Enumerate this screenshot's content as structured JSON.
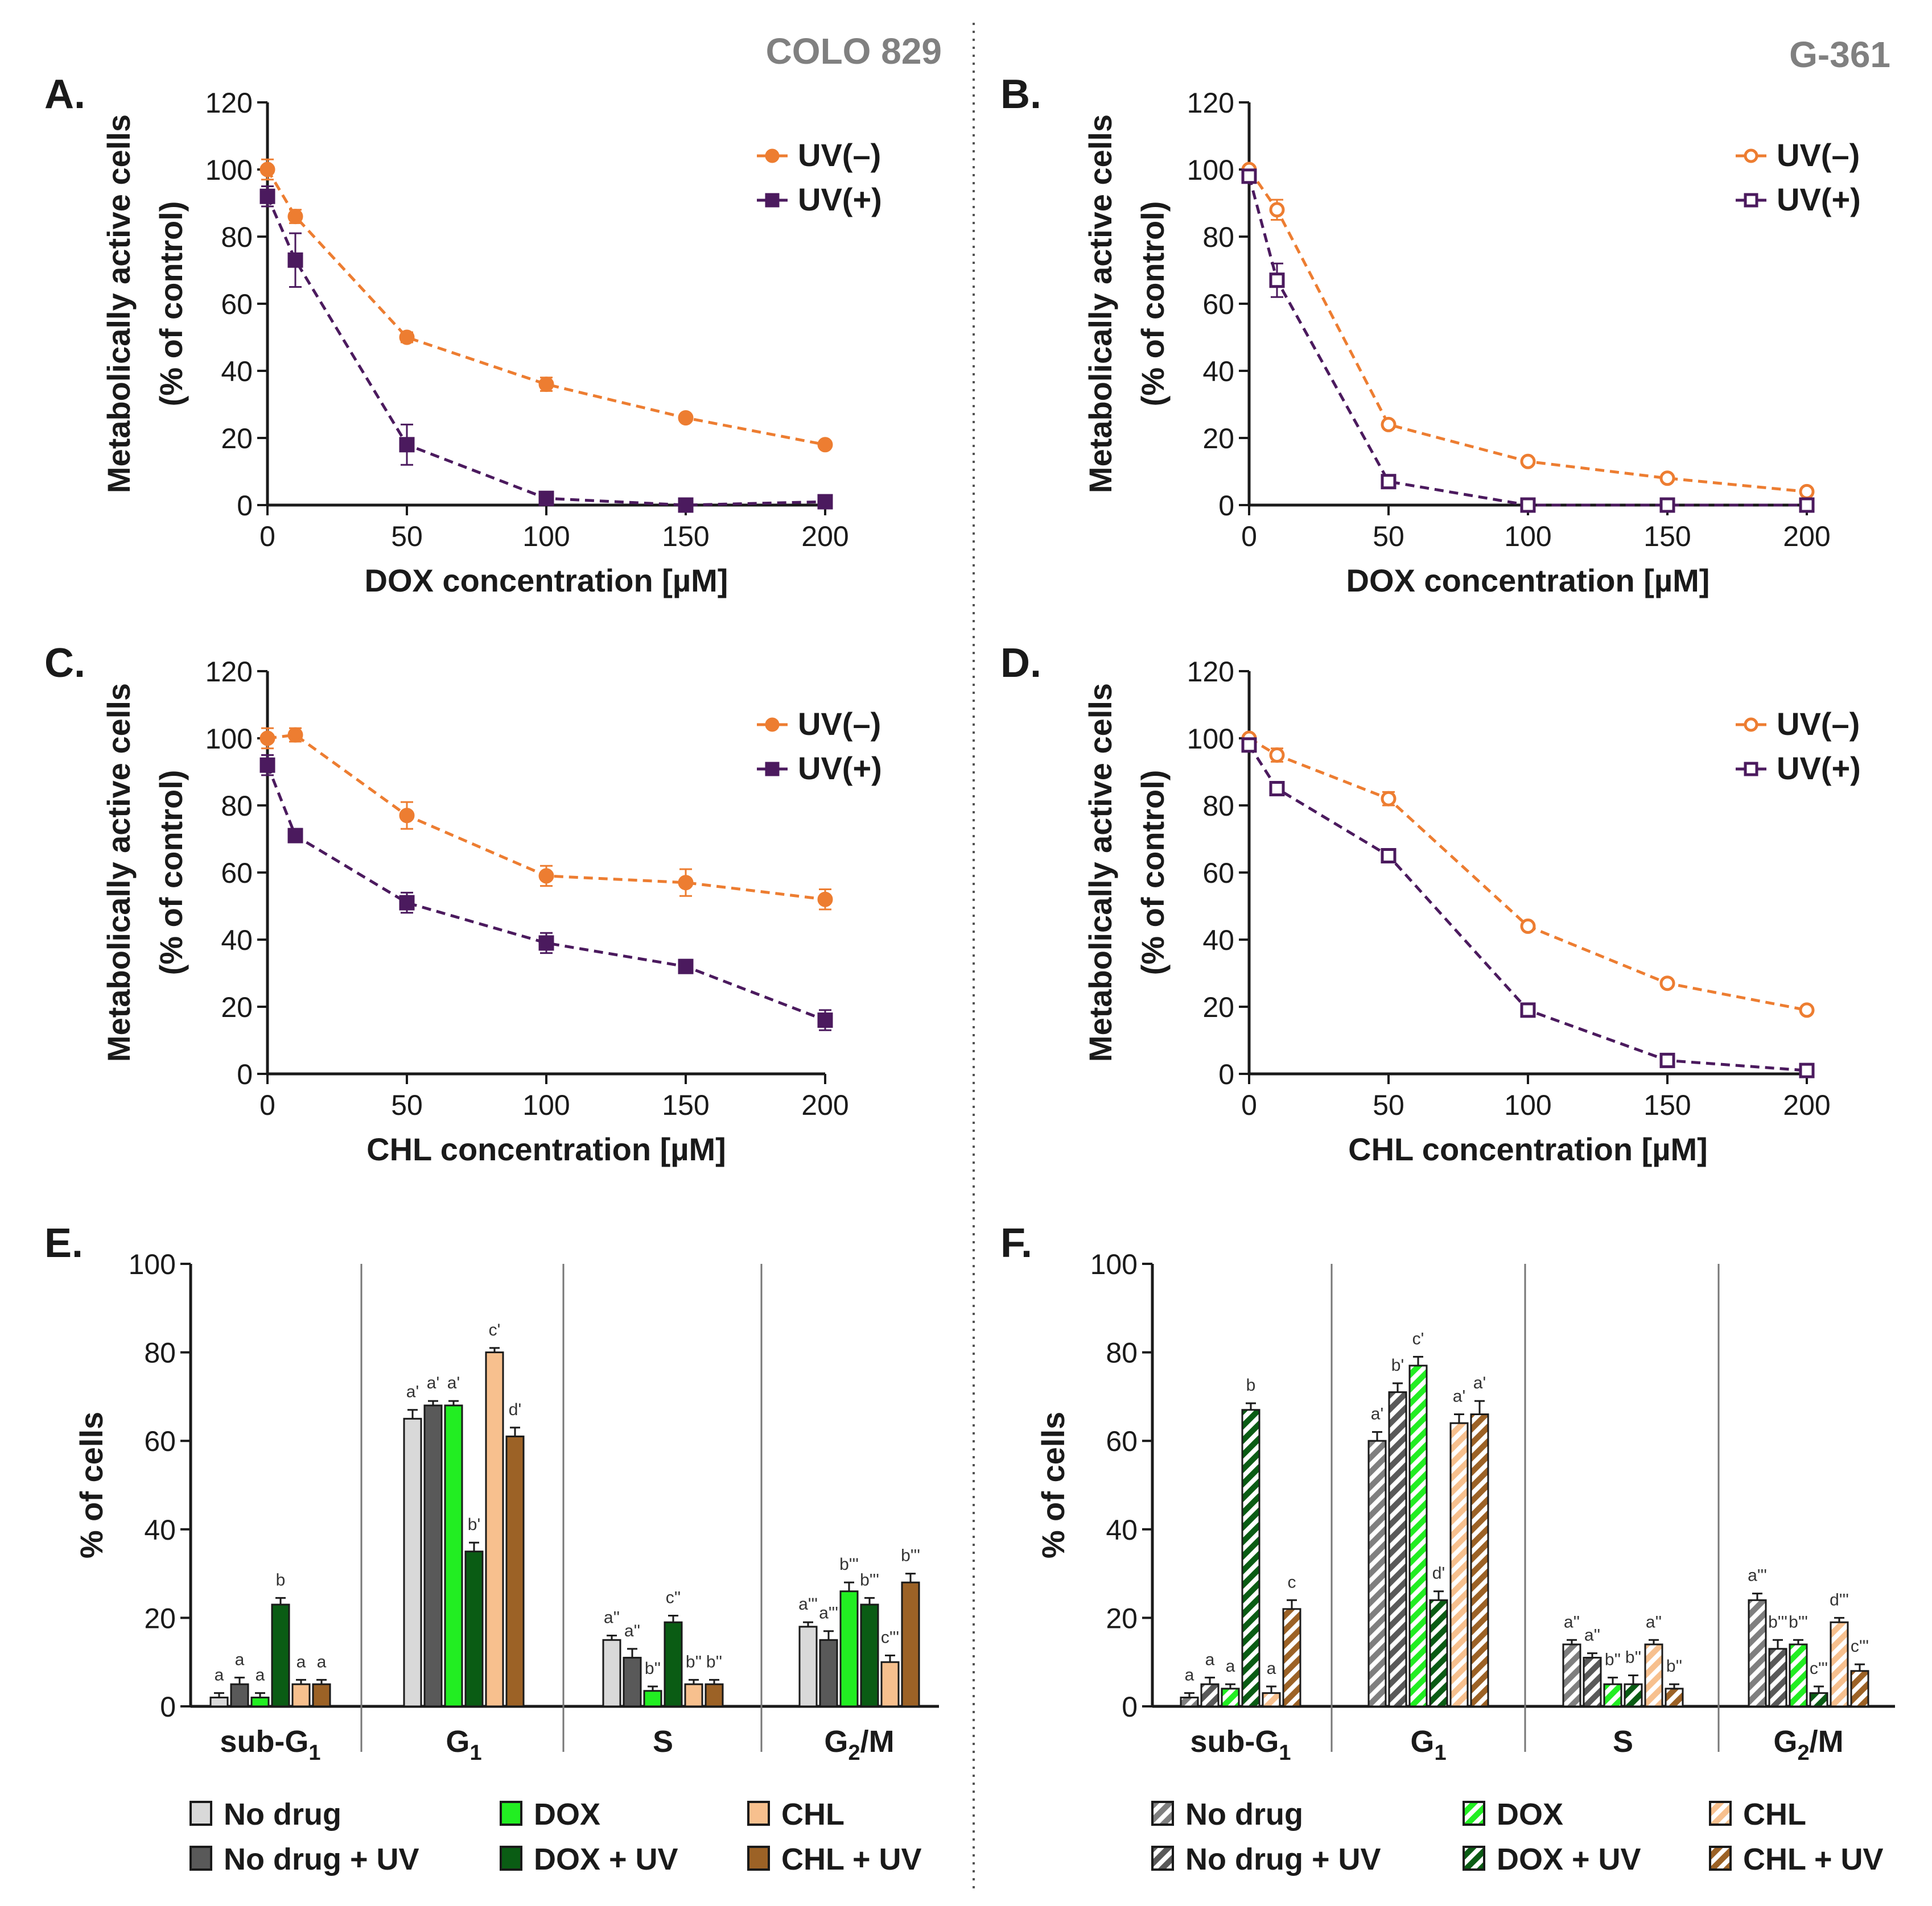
{
  "figure": {
    "left_title": "COLO 829",
    "right_title": "G-361"
  },
  "colors": {
    "uv_minus": "#ed7d31",
    "uv_plus": "#4b1a5e",
    "no_drug": "#d9d9d9",
    "no_drug_uv": "#595959",
    "dox": "#22ee22",
    "dox_uv": "#0a5c14",
    "chl": "#f7c08e",
    "chl_uv": "#9c6226"
  },
  "chart_data": [
    {
      "panel": "A.",
      "type": "line",
      "cell_line": "COLO 829",
      "xlabel": "DOX concentration [µM]",
      "ylabel": "Metabolically active cells",
      "ylabel2": "(% of control)",
      "xlim": [
        0,
        200
      ],
      "ylim": [
        0,
        120
      ],
      "xticks": [
        0,
        50,
        100,
        150,
        200
      ],
      "yticks": [
        0,
        20,
        40,
        60,
        80,
        100,
        120
      ],
      "marker_fill": "filled",
      "x": [
        0,
        10,
        50,
        100,
        150,
        200
      ],
      "series": [
        {
          "name": "UV(–)",
          "values": [
            100,
            86,
            50,
            36,
            26,
            18
          ],
          "errors": [
            3,
            2,
            1.5,
            2,
            1,
            1
          ]
        },
        {
          "name": "UV(+)",
          "values": [
            92,
            73,
            18,
            2,
            0,
            1
          ],
          "errors": [
            3,
            8,
            6,
            1,
            0.5,
            0.5
          ]
        }
      ]
    },
    {
      "panel": "B.",
      "type": "line",
      "cell_line": "G-361",
      "xlabel": "DOX concentration [µM]",
      "ylabel": "Metabolically active cells",
      "ylabel2": "(% of control)",
      "xlim": [
        0,
        200
      ],
      "ylim": [
        0,
        120
      ],
      "xticks": [
        0,
        50,
        100,
        150,
        200
      ],
      "yticks": [
        0,
        20,
        40,
        60,
        80,
        100,
        120
      ],
      "marker_fill": "open",
      "x": [
        0,
        10,
        50,
        100,
        150,
        200
      ],
      "series": [
        {
          "name": "UV(–)",
          "values": [
            100,
            88,
            24,
            13,
            8,
            4
          ],
          "errors": [
            1,
            3,
            1,
            1,
            1,
            1
          ]
        },
        {
          "name": "UV(+)",
          "values": [
            98,
            67,
            7,
            0,
            0,
            0
          ],
          "errors": [
            1,
            5,
            1,
            0.5,
            0.5,
            0.5
          ]
        }
      ]
    },
    {
      "panel": "C.",
      "type": "line",
      "cell_line": "COLO 829",
      "xlabel": "CHL concentration [µM]",
      "ylabel": "Metabolically active cells",
      "ylabel2": "(% of control)",
      "xlim": [
        0,
        200
      ],
      "ylim": [
        0,
        120
      ],
      "xticks": [
        0,
        50,
        100,
        150,
        200
      ],
      "yticks": [
        0,
        20,
        40,
        60,
        80,
        100,
        120
      ],
      "marker_fill": "filled",
      "x": [
        0,
        10,
        50,
        100,
        150,
        200
      ],
      "series": [
        {
          "name": "UV(–)",
          "values": [
            100,
            101,
            77,
            59,
            57,
            52
          ],
          "errors": [
            3,
            2,
            4,
            3,
            4,
            3
          ]
        },
        {
          "name": "UV(+)",
          "values": [
            92,
            71,
            51,
            39,
            32,
            16
          ],
          "errors": [
            3,
            2,
            3,
            3,
            2,
            3
          ]
        }
      ]
    },
    {
      "panel": "D.",
      "type": "line",
      "cell_line": "G-361",
      "xlabel": "CHL concentration [µM]",
      "ylabel": "Metabolically active cells",
      "ylabel2": "(% of control)",
      "xlim": [
        0,
        200
      ],
      "ylim": [
        0,
        120
      ],
      "xticks": [
        0,
        50,
        100,
        150,
        200
      ],
      "yticks": [
        0,
        20,
        40,
        60,
        80,
        100,
        120
      ],
      "marker_fill": "open",
      "x": [
        0,
        10,
        50,
        100,
        150,
        200
      ],
      "series": [
        {
          "name": "UV(–)",
          "values": [
            100,
            95,
            82,
            44,
            27,
            19
          ],
          "errors": [
            1,
            2,
            2,
            1,
            1,
            1
          ]
        },
        {
          "name": "UV(+)",
          "values": [
            98,
            85,
            65,
            19,
            4,
            1
          ],
          "errors": [
            1,
            2,
            2,
            1,
            1,
            0.5
          ]
        }
      ]
    },
    {
      "panel": "E.",
      "type": "bar",
      "cell_line": "COLO 829",
      "ylabel": "% of cells",
      "ylim": [
        0,
        100
      ],
      "yticks": [
        0,
        20,
        40,
        60,
        80,
        100
      ],
      "hatched": false,
      "groups": [
        {
          "main": "sub-G",
          "sub": "1"
        },
        {
          "main": "G",
          "sub": "1"
        },
        {
          "main": "S",
          "sub": ""
        },
        {
          "main": "G",
          "sub": "2",
          "suffix": "/M"
        }
      ],
      "series": [
        {
          "name": "No drug",
          "color_key": "no_drug",
          "values": [
            2,
            65,
            15,
            18
          ],
          "errors": [
            1,
            2,
            1,
            1
          ],
          "labels": [
            "a",
            "a'",
            "a''",
            "a'''"
          ]
        },
        {
          "name": "No drug + UV",
          "color_key": "no_drug_uv",
          "values": [
            5,
            68,
            11,
            15
          ],
          "errors": [
            1.5,
            1,
            2,
            2
          ],
          "labels": [
            "a",
            "a'",
            "a''",
            "a'''"
          ]
        },
        {
          "name": "DOX",
          "color_key": "dox",
          "values": [
            2,
            68,
            3.5,
            26
          ],
          "errors": [
            1,
            1,
            1,
            2
          ],
          "labels": [
            "a",
            "a'",
            "b''",
            "b'''"
          ]
        },
        {
          "name": "DOX + UV",
          "color_key": "dox_uv",
          "values": [
            23,
            35,
            19,
            23
          ],
          "errors": [
            1.5,
            2,
            1.5,
            1.5
          ],
          "labels": [
            "b",
            "b'",
            "c''",
            "b'''"
          ]
        },
        {
          "name": "CHL",
          "color_key": "chl",
          "values": [
            5,
            80,
            5,
            10
          ],
          "errors": [
            1,
            1,
            1,
            1.5
          ],
          "labels": [
            "a",
            "c'",
            "b''",
            "c'''"
          ]
        },
        {
          "name": "CHL + UV",
          "color_key": "chl_uv",
          "values": [
            5,
            61,
            5,
            28
          ],
          "errors": [
            1,
            2,
            1,
            2
          ],
          "labels": [
            "a",
            "d'",
            "b''",
            "b'''"
          ]
        }
      ]
    },
    {
      "panel": "F.",
      "type": "bar",
      "cell_line": "G-361",
      "ylabel": "% of cells",
      "ylim": [
        0,
        100
      ],
      "yticks": [
        0,
        20,
        40,
        60,
        80,
        100
      ],
      "hatched": true,
      "groups": [
        {
          "main": "sub-G",
          "sub": "1"
        },
        {
          "main": "G",
          "sub": "1"
        },
        {
          "main": "S",
          "sub": ""
        },
        {
          "main": "G",
          "sub": "2",
          "suffix": "/M"
        }
      ],
      "series": [
        {
          "name": "No drug",
          "color_key": "no_drug",
          "values": [
            2,
            60,
            14,
            24
          ],
          "errors": [
            1,
            2,
            1,
            1.5
          ],
          "labels": [
            "a",
            "a'",
            "a''",
            "a'''"
          ]
        },
        {
          "name": "No drug + UV",
          "color_key": "no_drug_uv",
          "values": [
            5,
            71,
            11,
            13
          ],
          "errors": [
            1.5,
            2,
            1,
            2
          ],
          "labels": [
            "a",
            "b'",
            "a''",
            "b'''"
          ]
        },
        {
          "name": "DOX",
          "color_key": "dox",
          "values": [
            4,
            77,
            5,
            14
          ],
          "errors": [
            1,
            2,
            1.5,
            1
          ],
          "labels": [
            "a",
            "c'",
            "b''",
            "b'''"
          ]
        },
        {
          "name": "DOX + UV",
          "color_key": "dox_uv",
          "values": [
            67,
            24,
            5,
            3
          ],
          "errors": [
            1.5,
            2,
            2,
            1.5
          ],
          "labels": [
            "b",
            "d'",
            "b''",
            "c'''"
          ]
        },
        {
          "name": "CHL",
          "color_key": "chl",
          "values": [
            3,
            64,
            14,
            19
          ],
          "errors": [
            1.5,
            2,
            1,
            1
          ],
          "labels": [
            "a",
            "a'",
            "a''",
            "d'''"
          ]
        },
        {
          "name": "CHL + UV",
          "color_key": "chl_uv",
          "values": [
            22,
            66,
            4,
            8
          ],
          "errors": [
            2,
            3,
            1,
            1.5
          ],
          "labels": [
            "c",
            "a'",
            "b''",
            "c'''"
          ]
        }
      ]
    }
  ]
}
